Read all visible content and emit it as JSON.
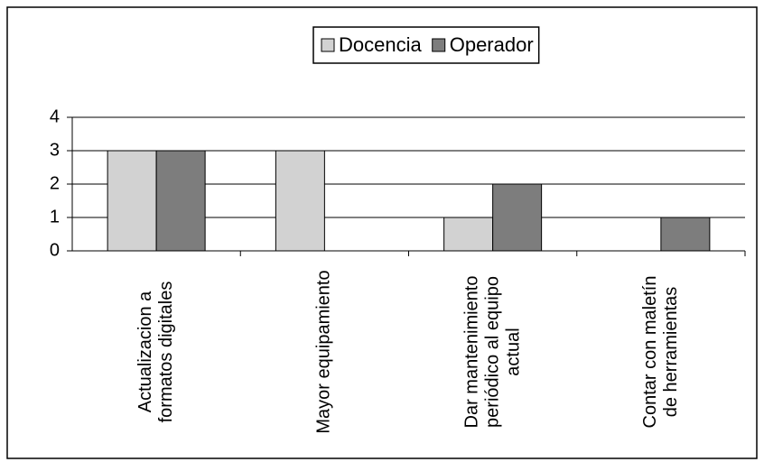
{
  "chart_data": {
    "type": "bar",
    "categories": [
      "Actualizacion a formatos digitales",
      "Mayor equipamiento",
      "Dar mantenimiento periódico al equipo actual",
      "Contar con maletín de herramientas"
    ],
    "series": [
      {
        "name": "Docencia",
        "color": "#d2d2d2",
        "values": [
          3,
          3,
          1,
          0
        ]
      },
      {
        "name": "Operador",
        "color": "#7d7d7d",
        "values": [
          3,
          0,
          2,
          1
        ]
      }
    ],
    "ylim": [
      0,
      4
    ],
    "yticks": [
      0,
      1,
      2,
      3,
      4
    ],
    "grid": true,
    "legend": "top"
  }
}
